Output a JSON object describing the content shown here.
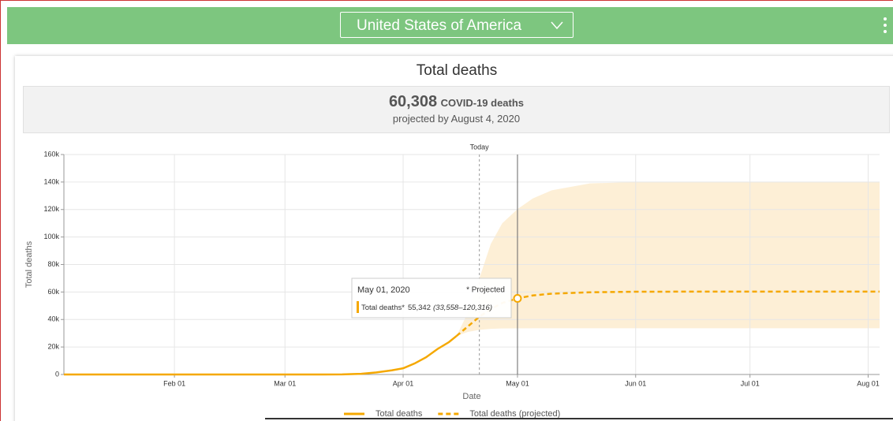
{
  "header": {
    "country": "United States of America"
  },
  "summary": {
    "value": "60,308",
    "unit": "COVID-19 deaths",
    "note": "projected by August 4, 2020"
  },
  "chart_data": {
    "type": "line",
    "title": "Total deaths",
    "x_label": "Date",
    "y_label": "Total deaths",
    "xlim": [
      2,
      216
    ],
    "xticks": [
      {
        "value": 31,
        "label": "Feb 01"
      },
      {
        "value": 60,
        "label": "Mar 01"
      },
      {
        "value": 91,
        "label": "Apr 01"
      },
      {
        "value": 121,
        "label": "May 01"
      },
      {
        "value": 152,
        "label": "Jun 01"
      },
      {
        "value": 182,
        "label": "Jul 01"
      },
      {
        "value": 213,
        "label": "Aug 01"
      }
    ],
    "ylim": [
      0,
      160000
    ],
    "yticks": [
      0,
      {
        "value": 20000,
        "label": "20k"
      },
      {
        "value": 40000,
        "label": "40k"
      },
      {
        "value": 60000,
        "label": "60k"
      },
      {
        "value": 80000,
        "label": "80k"
      },
      {
        "value": 100000,
        "label": "100k"
      },
      {
        "value": 120000,
        "label": "120k"
      },
      {
        "value": 140000,
        "label": "140k"
      },
      {
        "value": 160000,
        "label": "160k"
      }
    ],
    "grid": true,
    "series": [
      {
        "name": "Total deaths",
        "color": "#f5a800",
        "dashed": false,
        "x": [
          2,
          20,
          40,
          60,
          70,
          75,
          80,
          84,
          88,
          91,
          94,
          97,
          100,
          103,
          105
        ],
        "values": [
          0,
          0,
          0,
          0,
          10,
          100,
          500,
          1500,
          3000,
          4500,
          8000,
          12500,
          18500,
          23500,
          28000
        ]
      },
      {
        "name": "Total deaths (projected)",
        "color": "#f5a800",
        "dashed": true,
        "x": [
          105,
          108,
          111,
          114,
          117,
          121,
          125,
          130,
          140,
          152,
          170,
          182,
          200,
          216
        ],
        "values": [
          28000,
          35000,
          42000,
          47500,
          52000,
          55342,
          57500,
          58800,
          59800,
          60200,
          60300,
          60300,
          60308,
          60308
        ]
      }
    ],
    "band": {
      "color": "#fdefd6",
      "x": [
        105,
        108,
        111,
        114,
        117,
        121,
        125,
        130,
        140,
        152,
        182,
        216
      ],
      "lower": [
        28000,
        31000,
        32500,
        33200,
        33500,
        33558,
        33600,
        33600,
        33600,
        33600,
        33600,
        33600
      ],
      "upper": [
        28000,
        45000,
        70000,
        95000,
        110000,
        120316,
        128000,
        134000,
        139000,
        140000,
        140100,
        140100
      ]
    },
    "today": {
      "x": 111,
      "label": "Today"
    },
    "tooltip": {
      "x": 121,
      "date": "May 01, 2020",
      "flag": "* Projected",
      "name": "Total deaths*",
      "value": "55,342",
      "range": "(33,558–120,316)"
    }
  }
}
